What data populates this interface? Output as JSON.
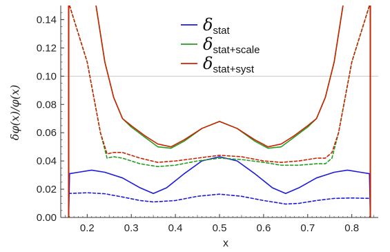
{
  "chart_data": {
    "type": "line",
    "title": "",
    "xlabel": "x",
    "ylabel": "δφ(x)/φ(x)",
    "xlim": [
      0.14,
      0.86
    ],
    "ylim": [
      0.0,
      0.15
    ],
    "xticks": [
      "0.2",
      "0.3",
      "0.4",
      "0.5",
      "0.6",
      "0.7",
      "0.8"
    ],
    "xtick_values": [
      0.2,
      0.3,
      0.4,
      0.5,
      0.6,
      0.7,
      0.8
    ],
    "yticks": [
      "0.00",
      "0.02",
      "0.04",
      "0.06",
      "0.08",
      "0.10",
      "0.12",
      "0.14"
    ],
    "ytick_values": [
      0.0,
      0.02,
      0.04,
      0.06,
      0.08,
      0.1,
      0.12,
      0.14
    ],
    "reference_line_y": 0.1,
    "legend_position": "top-center",
    "legend": [
      {
        "symbol": "δ",
        "sub": "stat",
        "color": "#1a1adb"
      },
      {
        "symbol": "δ",
        "sub": "stat+scale",
        "color": "#1f9e1f"
      },
      {
        "symbol": "δ",
        "sub": "stat+syst",
        "color": "#cc2200"
      }
    ],
    "series": [
      {
        "name": "δstat (solid)",
        "color": "#1a1adb",
        "style": "solid",
        "x": [
          0.158,
          0.16,
          0.18,
          0.21,
          0.24,
          0.28,
          0.32,
          0.35,
          0.38,
          0.42,
          0.46,
          0.5,
          0.54,
          0.58,
          0.62,
          0.65,
          0.68,
          0.72,
          0.76,
          0.79,
          0.82,
          0.84,
          0.842
        ],
        "y": [
          0.0,
          0.031,
          0.032,
          0.0335,
          0.032,
          0.028,
          0.021,
          0.017,
          0.021,
          0.031,
          0.04,
          0.043,
          0.04,
          0.031,
          0.021,
          0.017,
          0.021,
          0.028,
          0.032,
          0.0335,
          0.032,
          0.031,
          0.0
        ]
      },
      {
        "name": "δstat (dashed)",
        "color": "#1a1adb",
        "style": "dashed",
        "x": [
          0.158,
          0.2,
          0.24,
          0.28,
          0.32,
          0.35,
          0.4,
          0.45,
          0.5,
          0.55,
          0.6,
          0.65,
          0.68,
          0.72,
          0.76,
          0.8,
          0.842
        ],
        "y": [
          0.017,
          0.0175,
          0.0168,
          0.0145,
          0.012,
          0.011,
          0.012,
          0.015,
          0.0165,
          0.015,
          0.012,
          0.0095,
          0.01,
          0.012,
          0.0135,
          0.0138,
          0.0135
        ]
      },
      {
        "name": "δstat+scale (solid)",
        "color": "#1f9e1f",
        "style": "solid",
        "x": [
          0.22,
          0.24,
          0.26,
          0.28,
          0.3,
          0.33,
          0.36,
          0.39,
          0.42,
          0.46,
          0.5,
          0.54,
          0.58,
          0.61,
          0.64,
          0.67,
          0.7,
          0.72,
          0.74,
          0.76,
          0.78
        ],
        "y": [
          0.15,
          0.11,
          0.085,
          0.07,
          0.064,
          0.057,
          0.05,
          0.049,
          0.054,
          0.063,
          0.068,
          0.063,
          0.054,
          0.049,
          0.05,
          0.057,
          0.064,
          0.07,
          0.085,
          0.11,
          0.15
        ]
      },
      {
        "name": "δstat+scale (dashed)",
        "color": "#1f9e1f",
        "style": "dashed",
        "x": [
          0.16,
          0.2,
          0.23,
          0.245,
          0.26,
          0.28,
          0.32,
          0.36,
          0.4,
          0.45,
          0.5,
          0.55,
          0.6,
          0.64,
          0.68,
          0.72,
          0.74,
          0.755,
          0.77,
          0.8,
          0.84
        ],
        "y": [
          0.15,
          0.11,
          0.06,
          0.042,
          0.043,
          0.042,
          0.038,
          0.036,
          0.037,
          0.04,
          0.042,
          0.041,
          0.039,
          0.037,
          0.037,
          0.038,
          0.038,
          0.042,
          0.06,
          0.11,
          0.15
        ]
      },
      {
        "name": "δstat+syst (solid)",
        "color": "#cc2200",
        "style": "solid",
        "x": [
          0.22,
          0.24,
          0.26,
          0.28,
          0.3,
          0.33,
          0.36,
          0.39,
          0.42,
          0.46,
          0.5,
          0.54,
          0.58,
          0.61,
          0.64,
          0.67,
          0.7,
          0.72,
          0.74,
          0.76,
          0.78
        ],
        "y": [
          0.15,
          0.11,
          0.085,
          0.07,
          0.065,
          0.058,
          0.052,
          0.05,
          0.055,
          0.063,
          0.068,
          0.063,
          0.055,
          0.05,
          0.052,
          0.058,
          0.065,
          0.07,
          0.085,
          0.11,
          0.15
        ]
      },
      {
        "name": "δstat+syst (dashed)",
        "color": "#cc2200",
        "style": "dashed",
        "x": [
          0.16,
          0.2,
          0.23,
          0.245,
          0.26,
          0.28,
          0.32,
          0.36,
          0.4,
          0.45,
          0.5,
          0.55,
          0.6,
          0.64,
          0.68,
          0.72,
          0.74,
          0.755,
          0.77,
          0.8,
          0.84
        ],
        "y": [
          0.15,
          0.11,
          0.06,
          0.045,
          0.046,
          0.046,
          0.042,
          0.039,
          0.04,
          0.042,
          0.044,
          0.043,
          0.04,
          0.039,
          0.04,
          0.042,
          0.042,
          0.046,
          0.06,
          0.11,
          0.15
        ]
      },
      {
        "name": "left boundary",
        "color": "#cc2200",
        "style": "solid",
        "x": [
          0.158,
          0.158
        ],
        "y": [
          0.0,
          0.15
        ]
      },
      {
        "name": "right boundary",
        "color": "#cc2200",
        "style": "solid",
        "x": [
          0.842,
          0.842
        ],
        "y": [
          0.0,
          0.15
        ]
      }
    ]
  }
}
